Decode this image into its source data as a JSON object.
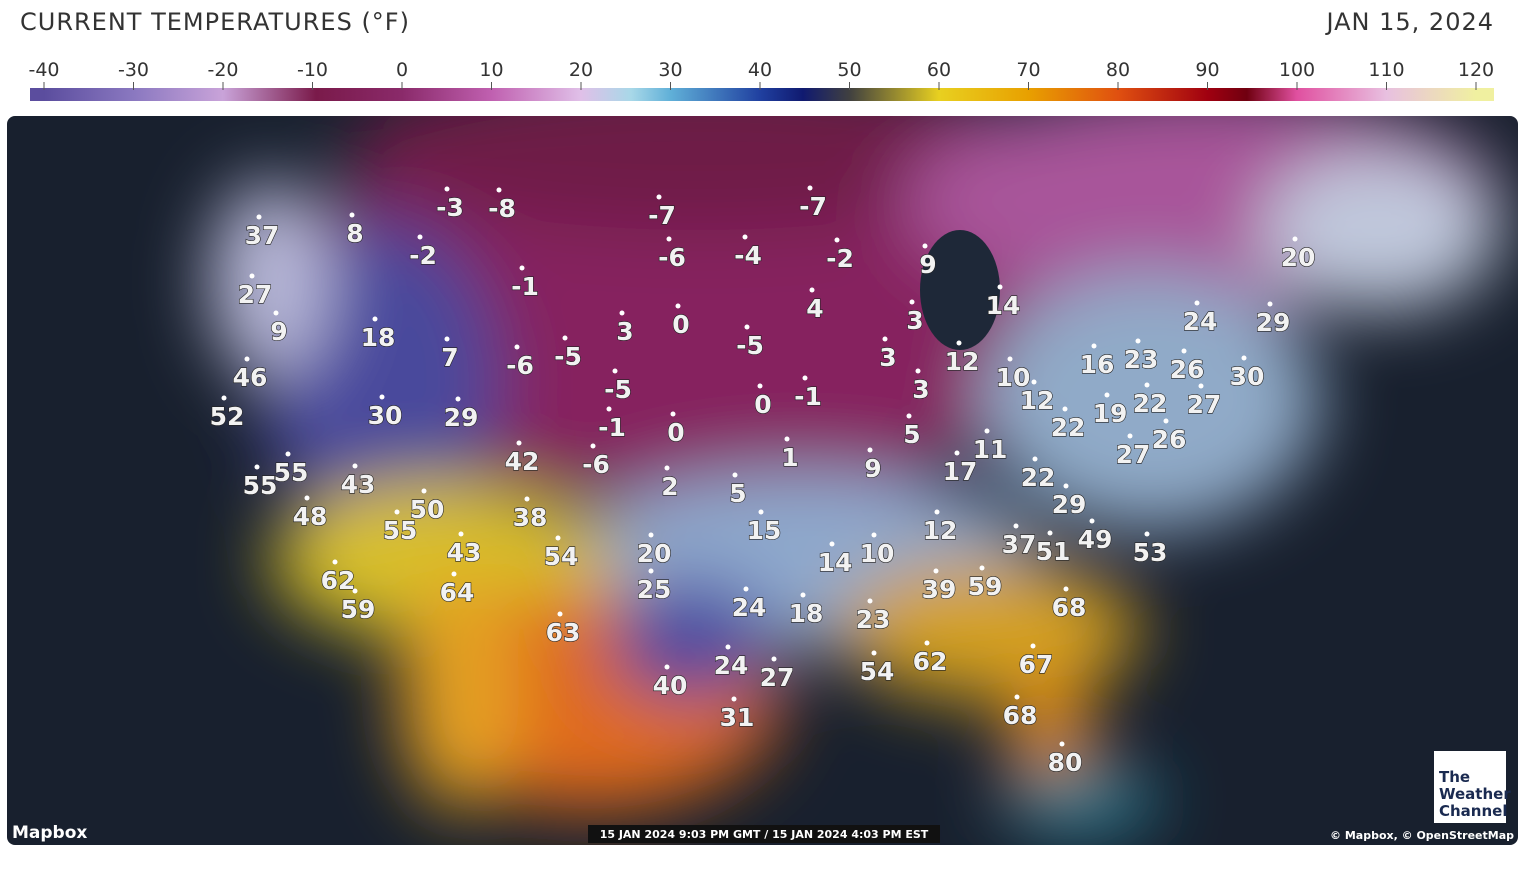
{
  "header": {
    "title": "CURRENT TEMPERATURES (°F)",
    "date": "JAN 15, 2024"
  },
  "color_scale": {
    "ticks": [
      -40,
      -30,
      -20,
      -10,
      0,
      10,
      20,
      30,
      40,
      50,
      60,
      70,
      80,
      90,
      100,
      110,
      120
    ]
  },
  "map": {
    "temperatures": [
      37,
      8,
      -3,
      -8,
      -7,
      -7,
      -2,
      -6,
      -4,
      -2,
      9,
      20,
      27,
      -1,
      4,
      14,
      24,
      29,
      9,
      18,
      3,
      0,
      3,
      -5,
      46,
      7,
      -6,
      -5,
      3,
      12,
      10,
      16,
      23,
      26,
      30,
      52,
      30,
      29,
      -5,
      0,
      -1,
      3,
      12,
      19,
      22,
      27,
      -1,
      0,
      5,
      22,
      26,
      11,
      27,
      42,
      -6,
      1,
      9,
      17,
      55,
      55,
      43,
      22,
      2,
      5,
      29,
      50,
      48,
      38,
      15,
      12,
      55,
      37,
      51,
      49,
      53,
      43,
      54,
      20,
      14,
      10,
      62,
      64,
      25,
      39,
      59,
      59,
      24,
      18,
      23,
      68,
      63,
      54,
      62,
      67,
      24,
      27,
      40,
      31,
      68,
      80
    ],
    "timestamp": "15 JAN 2024 9:03 PM GMT / 15 JAN 2024 4:03 PM EST",
    "logo_left": "Mapbox",
    "attribution": "© Mapbox, © OpenStreetMap",
    "brand": [
      "The",
      "Weather",
      "Channel"
    ]
  }
}
